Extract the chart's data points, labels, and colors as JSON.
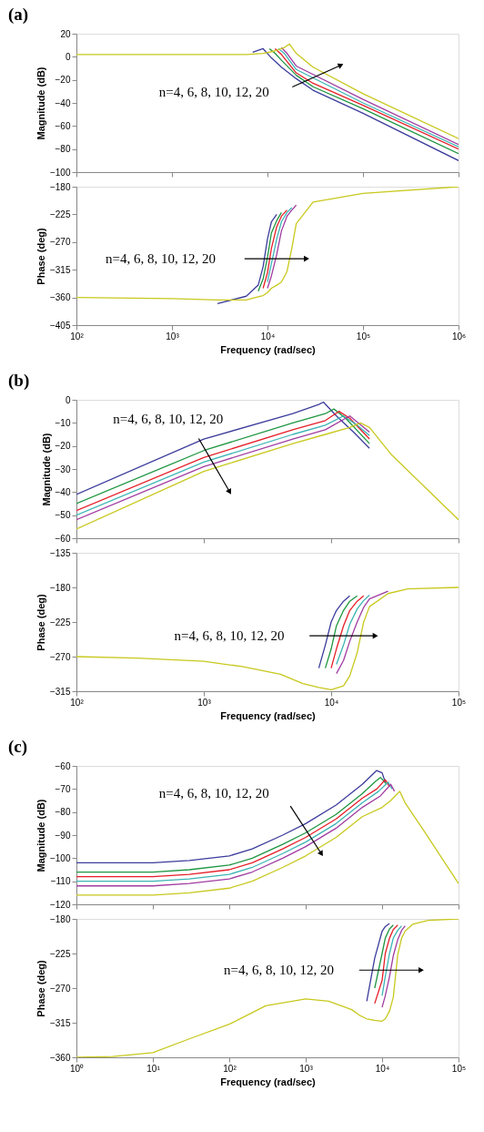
{
  "chart_data": [
    {
      "type": "line",
      "title": "(a)",
      "ylabel": "Magnitude (dB)",
      "log": "x",
      "tick_labels": "y",
      "xlim": [
        100,
        1000000
      ],
      "ylim": [
        -100,
        20
      ],
      "xticks": [
        {
          "value": 100,
          "label": null
        },
        {
          "value": 1000,
          "label": null
        },
        {
          "value": 10000,
          "label": null
        },
        {
          "value": 100000,
          "label": null
        },
        {
          "value": 1000000,
          "label": null
        }
      ],
      "yticks": [
        20,
        0,
        -20,
        -40,
        -60,
        -80,
        -100
      ],
      "annotations": [
        "n=4, 6, 8, 10, 12, 20"
      ],
      "series": [
        {
          "color": "#3c3c9c",
          "x": [
            7000,
            9000,
            11000,
            14000,
            20000,
            30000,
            100000,
            1000000
          ],
          "values": [
            4,
            7,
            -1,
            -9,
            -19,
            -29,
            -49,
            -90
          ]
        },
        {
          "color": "#1e9640",
          "x": [
            10500,
            12000,
            14000,
            20000,
            30000,
            100000,
            1000000
          ],
          "values": [
            7,
            3,
            -3,
            -16,
            -26,
            -45,
            -84
          ]
        },
        {
          "color": "#e61e28",
          "x": [
            12000,
            14000,
            20000,
            30000,
            100000,
            1000000
          ],
          "values": [
            7,
            2,
            -14,
            -23,
            -42,
            -80
          ]
        },
        {
          "color": "#3cb4b4",
          "x": [
            13000,
            15000,
            20000,
            100000,
            1000000
          ],
          "values": [
            7,
            3,
            -11,
            -40,
            -78
          ]
        },
        {
          "color": "#a03ca0",
          "x": [
            14000,
            16000,
            20000,
            100000,
            1000000
          ],
          "values": [
            8,
            3,
            -8,
            -37,
            -76
          ]
        },
        {
          "color": "#c8c81e",
          "x": [
            100,
            1000,
            3000,
            6000,
            9000,
            12000,
            15000,
            17000,
            20000,
            30000,
            100000,
            1000000
          ],
          "values": [
            2,
            2,
            2,
            2,
            3,
            5,
            8,
            11,
            3,
            -9,
            -32,
            -71
          ]
        }
      ]
    },
    {
      "type": "line",
      "ylabel": "Phase (deg)",
      "xlabel": "Frequency (rad/sec)",
      "log": "x",
      "xlim": [
        100,
        1000000
      ],
      "ylim": [
        -405,
        -180
      ],
      "xticks": [
        {
          "value": 100,
          "label": "10²"
        },
        {
          "value": 1000,
          "label": "10³"
        },
        {
          "value": 10000,
          "label": "10⁴"
        },
        {
          "value": 100000,
          "label": "10⁵"
        },
        {
          "value": 1000000,
          "label": "10⁶"
        }
      ],
      "yticks": [
        -180,
        -225,
        -270,
        -315,
        -360,
        -405
      ],
      "annotations": [
        "n=4, 6, 8, 10, 12, 20"
      ],
      "series": [
        {
          "color": "#3c3c9c",
          "x": [
            3000,
            6000,
            8000,
            9000,
            10000,
            11000,
            12500
          ],
          "values": [
            -370,
            -358,
            -340,
            -310,
            -265,
            -237,
            -225
          ]
        },
        {
          "color": "#1e9640",
          "x": [
            8000,
            9000,
            10000,
            11000,
            12500,
            14000
          ],
          "values": [
            -350,
            -330,
            -295,
            -255,
            -235,
            -222
          ]
        },
        {
          "color": "#e61e28",
          "x": [
            9000,
            10000,
            11000,
            12500,
            14000,
            16000
          ],
          "values": [
            -345,
            -320,
            -280,
            -245,
            -228,
            -218
          ]
        },
        {
          "color": "#3cb4b4",
          "x": [
            10000,
            11000,
            12500,
            14000,
            16000,
            18000
          ],
          "values": [
            -335,
            -305,
            -265,
            -237,
            -222,
            -214
          ]
        },
        {
          "color": "#a03ca0",
          "x": [
            10000,
            11000,
            12500,
            14000,
            16000,
            18000,
            20000
          ],
          "values": [
            -345,
            -325,
            -290,
            -252,
            -228,
            -218,
            -210
          ]
        },
        {
          "color": "#c8c81e",
          "x": [
            100,
            1000,
            3000,
            6000,
            8000,
            9000,
            10000,
            11000,
            12500,
            14000,
            16000,
            18000,
            20000,
            30000,
            100000,
            1000000
          ],
          "values": [
            -360,
            -362,
            -364,
            -364,
            -359,
            -357,
            -352,
            -345,
            -340,
            -335,
            -318,
            -280,
            -240,
            -205,
            -191,
            -180
          ]
        }
      ]
    },
    {
      "type": "line",
      "title": "(b)",
      "ylabel": "Magnitude (dB)",
      "log": "x",
      "tick_labels": "y",
      "xlim": [
        100,
        100000
      ],
      "ylim": [
        -60,
        0
      ],
      "xticks": [
        {
          "value": 100,
          "label": null
        },
        {
          "value": 1000,
          "label": null
        },
        {
          "value": 10000,
          "label": null
        },
        {
          "value": 100000,
          "label": null
        }
      ],
      "yticks": [
        0,
        -10,
        -20,
        -30,
        -40,
        -50,
        -60
      ],
      "annotations": [
        "n=4, 6, 8, 10, 12, 20"
      ],
      "series": [
        {
          "color": "#3c3c9c",
          "x": [
            100,
            1000,
            5000,
            8000,
            8700,
            11000,
            15000,
            20000
          ],
          "values": [
            -41,
            -17,
            -6,
            -2,
            -1,
            -7,
            -14,
            -21
          ]
        },
        {
          "color": "#1e9640",
          "x": [
            100,
            1000,
            5000,
            9000,
            10500,
            13000,
            20000
          ],
          "values": [
            -45,
            -22,
            -10,
            -6,
            -4,
            -8,
            -19
          ]
        },
        {
          "color": "#e61e28",
          "x": [
            100,
            1000,
            5000,
            9000,
            11500,
            14000,
            20000
          ],
          "values": [
            -48,
            -25,
            -13,
            -9,
            -5,
            -8,
            -17
          ]
        },
        {
          "color": "#3cb4b4",
          "x": [
            100,
            1000,
            5000,
            9000,
            12500,
            16000,
            20000
          ],
          "values": [
            -50,
            -27,
            -15,
            -11,
            -7,
            -11,
            -15.5
          ]
        },
        {
          "color": "#a03ca0",
          "x": [
            100,
            1000,
            5000,
            9000,
            14000,
            20000
          ],
          "values": [
            -52,
            -29,
            -17,
            -13,
            -7,
            -14
          ]
        },
        {
          "color": "#c8c81e",
          "x": [
            100,
            1000,
            5000,
            9000,
            14000,
            17000,
            20000,
            30000,
            100000
          ],
          "values": [
            -56,
            -31,
            -19,
            -15,
            -12,
            -10,
            -12,
            -24,
            -52
          ]
        }
      ]
    },
    {
      "type": "line",
      "ylabel": "Phase (deg)",
      "xlabel": "Frequency (rad/sec)",
      "log": "x",
      "xlim": [
        100,
        100000
      ],
      "ylim": [
        -315,
        -135
      ],
      "xticks": [
        {
          "value": 100,
          "label": "10²"
        },
        {
          "value": 1000,
          "label": "10³"
        },
        {
          "value": 10000,
          "label": "10⁴"
        },
        {
          "value": 100000,
          "label": "10⁵"
        }
      ],
      "yticks": [
        -135,
        -180,
        -225,
        -270,
        -315
      ],
      "annotations": [
        "n=4, 6, 8, 10, 12, 20"
      ],
      "series": [
        {
          "color": "#3c3c9c",
          "x": [
            8000,
            9000,
            10000,
            11000,
            12500,
            14000
          ],
          "values": [
            -285,
            -255,
            -225,
            -210,
            -198,
            -191
          ]
        },
        {
          "color": "#1e9640",
          "x": [
            9000,
            10000,
            11000,
            12500,
            14000,
            16000
          ],
          "values": [
            -285,
            -260,
            -230,
            -210,
            -198,
            -191
          ]
        },
        {
          "color": "#e61e28",
          "x": [
            10000,
            11000,
            12500,
            14000,
            16000,
            18000
          ],
          "values": [
            -285,
            -260,
            -230,
            -210,
            -198,
            -191
          ]
        },
        {
          "color": "#3cb4b4",
          "x": [
            11000,
            12500,
            14000,
            16000,
            18000,
            20000
          ],
          "values": [
            -280,
            -255,
            -228,
            -208,
            -197,
            -190
          ]
        },
        {
          "color": "#a03ca0",
          "x": [
            11000,
            12500,
            14000,
            16000,
            18000,
            20000,
            28000
          ],
          "values": [
            -292,
            -275,
            -250,
            -225,
            -206,
            -195,
            -185
          ]
        },
        {
          "color": "#c8c81e",
          "x": [
            100,
            300,
            1000,
            2000,
            4000,
            6000,
            8000,
            10000,
            12500,
            14000,
            16000,
            18000,
            20000,
            28000,
            40000,
            100000
          ],
          "values": [
            -270,
            -272,
            -276,
            -283,
            -293,
            -305,
            -310,
            -313,
            -308,
            -295,
            -265,
            -225,
            -205,
            -188,
            -182,
            -180
          ]
        }
      ]
    },
    {
      "type": "line",
      "title": "(c)",
      "ylabel": "Magnitude (dB)",
      "log": "x",
      "tick_labels": "y",
      "xlim": [
        1,
        100000
      ],
      "ylim": [
        -120,
        -60
      ],
      "xticks": [
        {
          "value": 1,
          "label": null
        },
        {
          "value": 10,
          "label": null
        },
        {
          "value": 100,
          "label": null
        },
        {
          "value": 1000,
          "label": null
        },
        {
          "value": 10000,
          "label": null
        },
        {
          "value": 100000,
          "label": null
        }
      ],
      "yticks": [
        -60,
        -70,
        -80,
        -90,
        -100,
        -110,
        -120
      ],
      "annotations": [
        "n=4, 6, 8, 10, 12, 20"
      ],
      "series": [
        {
          "color": "#3c3c9c",
          "x": [
            1,
            10,
            30,
            100,
            200,
            500,
            1000,
            2500,
            5500,
            8500,
            10000,
            11000
          ],
          "values": [
            -102,
            -102,
            -101,
            -99,
            -96,
            -90,
            -85,
            -77,
            -68,
            -62,
            -63,
            -67
          ]
        },
        {
          "color": "#1e9640",
          "x": [
            1,
            10,
            30,
            100,
            200,
            500,
            1000,
            2500,
            5500,
            8000,
            9500,
            11500
          ],
          "values": [
            -106,
            -106,
            -105,
            -103,
            -100,
            -94,
            -89,
            -81,
            -72,
            -67,
            -65,
            -68
          ]
        },
        {
          "color": "#e61e28",
          "x": [
            1,
            10,
            30,
            100,
            200,
            500,
            1000,
            2500,
            5500,
            8500,
            11000,
            12500
          ],
          "values": [
            -108,
            -108,
            -107,
            -105,
            -102,
            -96,
            -91,
            -83,
            -74,
            -70,
            -66,
            -69
          ]
        },
        {
          "color": "#3cb4b4",
          "x": [
            1,
            10,
            30,
            100,
            200,
            500,
            1000,
            2500,
            5500,
            9000,
            12000,
            13500
          ],
          "values": [
            -110,
            -110,
            -109,
            -107,
            -104,
            -98,
            -93,
            -85,
            -76,
            -71,
            -67,
            -70
          ]
        },
        {
          "color": "#a03ca0",
          "x": [
            1,
            10,
            30,
            100,
            200,
            500,
            1000,
            2500,
            5500,
            9500,
            13000,
            14500
          ],
          "values": [
            -112,
            -112,
            -111,
            -109,
            -106,
            -100,
            -95,
            -87,
            -78,
            -73,
            -68,
            -71
          ]
        },
        {
          "color": "#c8c81e",
          "x": [
            1,
            10,
            30,
            100,
            200,
            500,
            1000,
            2500,
            5500,
            10000,
            13000,
            17000,
            20000,
            35000,
            100000
          ],
          "values": [
            -116,
            -116,
            -115,
            -113,
            -110,
            -104,
            -99,
            -91,
            -82,
            -78,
            -75,
            -71,
            -76,
            -88,
            -111
          ]
        }
      ]
    },
    {
      "type": "line",
      "ylabel": "Phase (deg)",
      "xlabel": "Frequency (rad/sec)",
      "log": "x",
      "xlim": [
        1,
        100000
      ],
      "ylim": [
        -360,
        -180
      ],
      "xticks": [
        {
          "value": 1,
          "label": "10⁰"
        },
        {
          "value": 10,
          "label": "10¹"
        },
        {
          "value": 100,
          "label": "10²"
        },
        {
          "value": 1000,
          "label": "10³"
        },
        {
          "value": 10000,
          "label": "10⁴"
        },
        {
          "value": 100000,
          "label": "10⁵"
        }
      ],
      "yticks": [
        -180,
        -225,
        -270,
        -315,
        -360
      ],
      "annotations": [
        "n=4, 6, 8, 10, 12, 20"
      ],
      "series": [
        {
          "color": "#3c3c9c",
          "x": [
            6300,
            8000,
            10000,
            11000,
            12500
          ],
          "values": [
            -287,
            -231,
            -196,
            -190,
            -186
          ]
        },
        {
          "color": "#1e9640",
          "x": [
            8000,
            10000,
            11000,
            12500,
            14000
          ],
          "values": [
            -270,
            -225,
            -205,
            -193,
            -188
          ]
        },
        {
          "color": "#e61e28",
          "x": [
            8000,
            10000,
            11000,
            12500,
            14000,
            16000
          ],
          "values": [
            -290,
            -260,
            -225,
            -205,
            -194,
            -188
          ]
        },
        {
          "color": "#3cb4b4",
          "x": [
            10000,
            11000,
            12500,
            14000,
            16000,
            18000
          ],
          "values": [
            -280,
            -255,
            -225,
            -205,
            -195,
            -189
          ]
        },
        {
          "color": "#a03ca0",
          "x": [
            10000,
            11000,
            12500,
            14000,
            16000,
            18000,
            20000
          ],
          "values": [
            -295,
            -280,
            -255,
            -228,
            -207,
            -195,
            -189
          ]
        },
        {
          "color": "#c8c81e",
          "x": [
            1,
            3,
            10,
            30,
            100,
            300,
            1000,
            2000,
            4000,
            5000,
            6300,
            8000,
            10000,
            11000,
            12500,
            14000,
            16000,
            18000,
            20000,
            25000,
            40000,
            100000
          ],
          "values": [
            -360,
            -359,
            -354,
            -336,
            -317,
            -293,
            -284,
            -287,
            -298,
            -305,
            -310,
            -312,
            -313,
            -310,
            -300,
            -282,
            -227,
            -205,
            -196,
            -187,
            -182,
            -180
          ]
        }
      ]
    }
  ]
}
